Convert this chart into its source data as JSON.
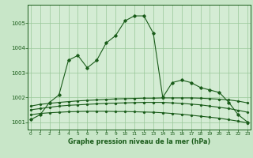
{
  "background_color": "#c8e6c8",
  "plot_bg_color": "#d4ecd4",
  "grid_color": "#98c898",
  "line_color": "#1a5c1a",
  "xlabel": "Graphe pression niveau de la mer (hPa)",
  "hours": [
    0,
    1,
    2,
    3,
    4,
    5,
    6,
    7,
    8,
    9,
    10,
    11,
    12,
    13,
    14,
    15,
    16,
    17,
    18,
    19,
    20,
    21,
    22,
    23
  ],
  "series_main": [
    1001.1,
    1001.3,
    1001.8,
    1002.1,
    1003.5,
    1003.7,
    1003.2,
    1003.5,
    1004.2,
    1004.5,
    1005.1,
    1005.3,
    1005.3,
    1004.6,
    1002.0,
    1002.6,
    1002.7,
    1002.6,
    1002.4,
    1002.3,
    1002.2,
    1001.8,
    1001.3,
    1001.0
  ],
  "series_flat1": [
    1001.65,
    1001.72,
    1001.76,
    1001.8,
    1001.83,
    1001.86,
    1001.88,
    1001.9,
    1001.92,
    1001.94,
    1001.95,
    1001.96,
    1001.97,
    1001.97,
    1001.98,
    1001.98,
    1001.98,
    1001.98,
    1001.97,
    1001.95,
    1001.93,
    1001.9,
    1001.85,
    1001.78
  ],
  "series_flat2": [
    1001.5,
    1001.55,
    1001.6,
    1001.65,
    1001.68,
    1001.7,
    1001.72,
    1001.74,
    1001.76,
    1001.77,
    1001.78,
    1001.79,
    1001.8,
    1001.8,
    1001.8,
    1001.78,
    1001.76,
    1001.73,
    1001.7,
    1001.65,
    1001.6,
    1001.55,
    1001.48,
    1001.4
  ],
  "series_flat3": [
    1001.3,
    1001.35,
    1001.38,
    1001.4,
    1001.42,
    1001.43,
    1001.44,
    1001.44,
    1001.44,
    1001.43,
    1001.43,
    1001.42,
    1001.41,
    1001.4,
    1001.38,
    1001.35,
    1001.32,
    1001.28,
    1001.24,
    1001.2,
    1001.16,
    1001.1,
    1001.04,
    1000.97
  ],
  "ylim": [
    1000.7,
    1005.75
  ],
  "yticks": [
    1001,
    1002,
    1003,
    1004,
    1005
  ],
  "xticks": [
    0,
    1,
    2,
    3,
    4,
    5,
    6,
    7,
    8,
    9,
    10,
    11,
    12,
    13,
    14,
    15,
    16,
    17,
    18,
    19,
    20,
    21,
    22,
    23
  ]
}
